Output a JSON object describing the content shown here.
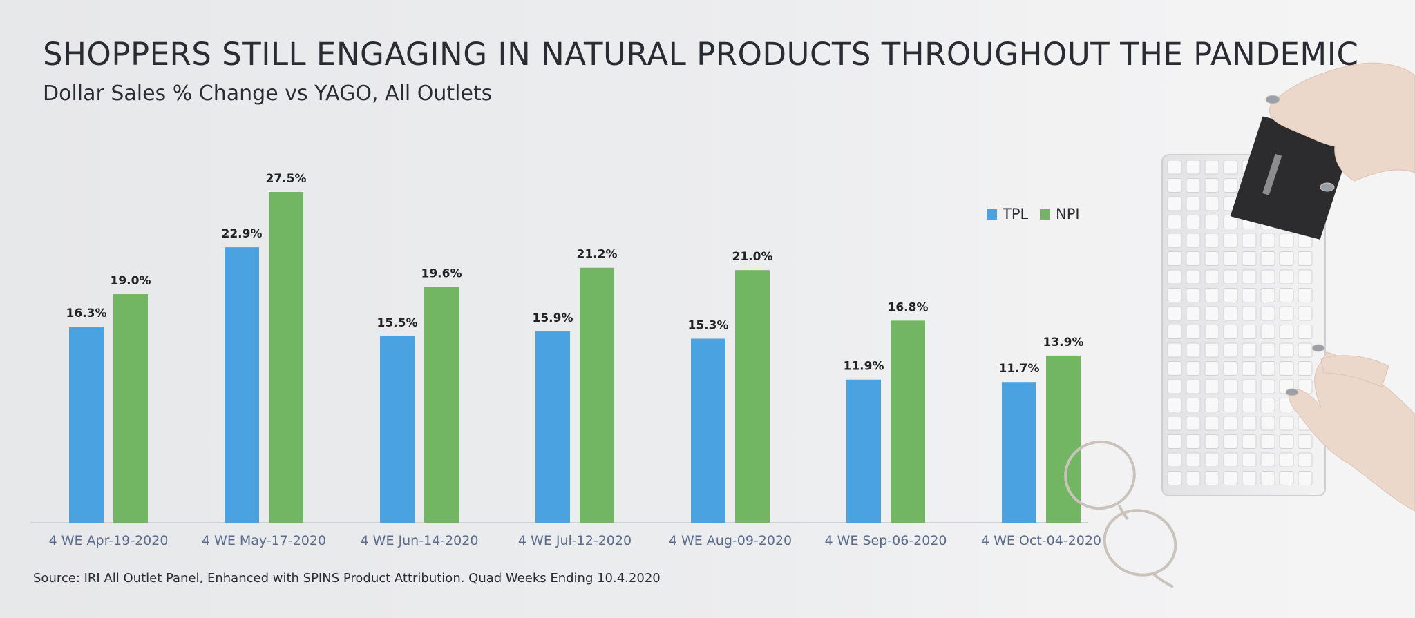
{
  "title": "SHOPPERS STILL ENGAGING IN NATURAL PRODUCTS THROUGHOUT THE PANDEMIC",
  "subtitle": "Dollar Sales % Change vs YAGO, All Outlets",
  "source": "Source: IRI All Outlet Panel, Enhanced with SPINS Product Attribution. Quad Weeks Ending 10.4.2020",
  "colors": {
    "tpl": "#4aa3e0",
    "npi": "#72b562",
    "axis": "#cfd0d4",
    "tick_text": "#5a6b8c",
    "label_text": "#222222"
  },
  "chart_data": {
    "type": "bar",
    "title": "SHOPPERS STILL ENGAGING IN NATURAL PRODUCTS THROUGHOUT THE PANDEMIC",
    "subtitle": "Dollar Sales % Change vs YAGO, All Outlets",
    "categories": [
      "4 WE Apr-19-2020",
      "4 WE May-17-2020",
      "4 WE Jun-14-2020",
      "4 WE Jul-12-2020",
      "4 WE Aug-09-2020",
      "4 WE Sep-06-2020",
      "4 WE Oct-04-2020"
    ],
    "series": [
      {
        "name": "TPL",
        "values": [
          16.3,
          22.9,
          15.5,
          15.9,
          15.3,
          11.9,
          11.7
        ],
        "labels": [
          "16.3%",
          "22.9%",
          "15.5%",
          "15.9%",
          "15.3%",
          "11.9%",
          "11.7%"
        ]
      },
      {
        "name": "NPI",
        "values": [
          19.0,
          27.5,
          19.6,
          21.2,
          21.0,
          16.8,
          13.9
        ],
        "labels": [
          "19.0%",
          "27.5%",
          "19.6%",
          "21.2%",
          "21.0%",
          "16.8%",
          "13.9%"
        ]
      }
    ],
    "ylim": [
      0,
      27.5
    ],
    "grid": false,
    "legend": "top-right",
    "xlabel": "",
    "ylabel": ""
  },
  "legend": {
    "tpl": "TPL",
    "npi": "NPI"
  }
}
